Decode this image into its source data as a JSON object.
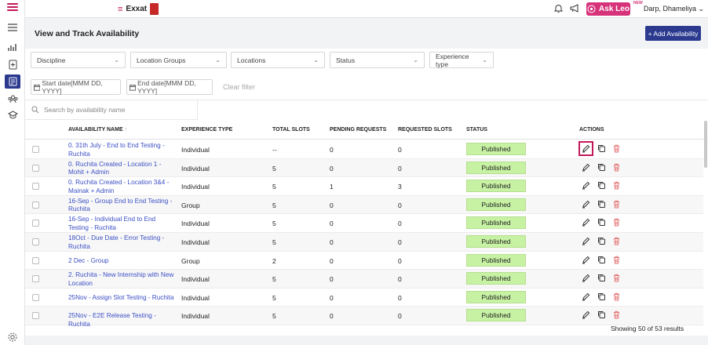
{
  "brand": {
    "name": "Exxat"
  },
  "topbar": {
    "ask_leo": "Ask Leo",
    "ask_leo_tag": "NEW",
    "user": "Darp, Dhameliya"
  },
  "sidebar": {
    "icons": [
      "menu-icon",
      "analytics-icon",
      "add-document-icon",
      "availability-icon",
      "users-icon",
      "graduation-icon",
      "settings-icon"
    ]
  },
  "page": {
    "title": "View and Track Availability",
    "add_button": "+ Add Availability"
  },
  "filters": {
    "discipline": "Discipline",
    "location_groups": "Location Groups",
    "locations": "Locations",
    "status": "Status",
    "experience_type": "Experience type",
    "start_date": "Start date[MMM DD, YYYY]",
    "end_date": "End date[MMM DD, YYYY]",
    "clear": "Clear filter"
  },
  "search": {
    "placeholder": "Search by availability name"
  },
  "table": {
    "columns": {
      "name": "AVAILABILITY NAME",
      "experience": "EXPERIENCE TYPE",
      "total": "TOTAL SLOTS",
      "pending": "PENDING REQUESTS",
      "requested": "REQUESTED SLOTS",
      "status": "STATUS",
      "actions": "ACTIONS"
    },
    "rows": [
      {
        "name": "0. 31th July - End to End Testing - Ruchita",
        "experience": "Individual",
        "total": "--",
        "pending": "0",
        "requested": "0",
        "status": "Published"
      },
      {
        "name": "0. Ruchita Created - Location 1 - Mohit + Admin",
        "experience": "Individual",
        "total": "5",
        "pending": "0",
        "requested": "0",
        "status": "Published"
      },
      {
        "name": "0. Ruchita Created - Location 3&4 - Mainak + Admin",
        "experience": "Individual",
        "total": "5",
        "pending": "1",
        "requested": "3",
        "status": "Published"
      },
      {
        "name": "16-Sep - Group End to End Testing - Ruchita",
        "experience": "Group",
        "total": "5",
        "pending": "0",
        "requested": "0",
        "status": "Published"
      },
      {
        "name": "16-Sep - Individual End to End Testing - Ruchita",
        "experience": "Individual",
        "total": "5",
        "pending": "0",
        "requested": "0",
        "status": "Published"
      },
      {
        "name": "18Oct - Due Date - Error Testing - Ruchita",
        "experience": "Individual",
        "total": "5",
        "pending": "0",
        "requested": "0",
        "status": "Published"
      },
      {
        "name": "2 Dec - Group",
        "experience": "Group",
        "total": "2",
        "pending": "0",
        "requested": "0",
        "status": "Published"
      },
      {
        "name": "2. Ruchita - New Internship with New Location",
        "experience": "Individual",
        "total": "5",
        "pending": "0",
        "requested": "0",
        "status": "Published"
      },
      {
        "name": "25Nov - Assign Slot Testing - Ruchita",
        "experience": "Individual",
        "total": "5",
        "pending": "0",
        "requested": "0",
        "status": "Published"
      },
      {
        "name": "25Nov - E2E Release Testing - Ruchita",
        "experience": "Individual",
        "total": "5",
        "pending": "0",
        "requested": "0",
        "status": "Published"
      }
    ],
    "footer": "Showing 50 of 53 results"
  },
  "colors": {
    "primary": "#2b3a8f",
    "accent": "#c2185b",
    "published": "#c7f2a4",
    "link": "#3b4fc4",
    "delete": "#e57373"
  }
}
